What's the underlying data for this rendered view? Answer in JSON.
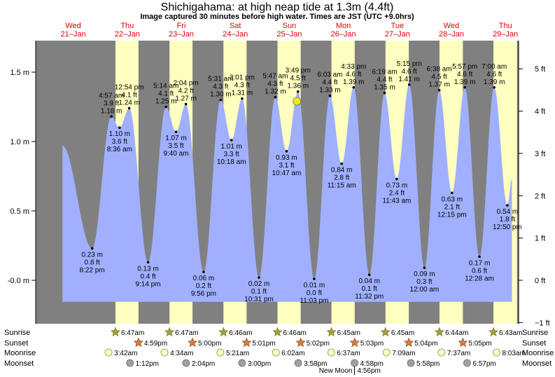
{
  "header": {
    "title": "Shichigahama: at high  neap tide at 1.3m (4.4ft)",
    "subtitle": "Image captured 30 minutes before high water. Times are JST (UTC +9.0hrs)"
  },
  "days": [
    {
      "name": "Wed",
      "date": "21–Jan"
    },
    {
      "name": "Thu",
      "date": "22–Jan"
    },
    {
      "name": "Fri",
      "date": "23–Jan"
    },
    {
      "name": "Sat",
      "date": "24–Jan"
    },
    {
      "name": "Sun",
      "date": "25–Jan"
    },
    {
      "name": "Mon",
      "date": "26–Jan"
    },
    {
      "name": "Tue",
      "date": "27–Jan"
    },
    {
      "name": "Wed",
      "date": "28–Jan"
    },
    {
      "name": "Thu",
      "date": "29–Jan"
    }
  ],
  "colors": {
    "night": "#808080",
    "day": "#ffffc0",
    "water": "#a0b0ff",
    "day_label": "#e00000",
    "sun_marker": "#a0a040",
    "sunset_marker": "#d08040",
    "moonrise_marker": "#ffffc0",
    "moonset_marker": "#a0a0a0"
  },
  "chart_data": {
    "type": "area",
    "title": "Shichigahama: at high  neap tide at 1.3m (4.4ft)",
    "y_left_unit": "m",
    "y_right_unit": "ft",
    "ylim_m": [
      -0.32,
      1.76
    ],
    "y_left_ticks": [
      "-0.0 m",
      "0.5 m",
      "1.0 m",
      "1.5 m"
    ],
    "y_left_values": [
      0,
      0.5,
      1.0,
      1.5
    ],
    "y_right_ticks": [
      "−1 ft",
      "0 ft",
      "1 ft",
      "2 ft",
      "3 ft",
      "4 ft",
      "5 ft"
    ],
    "y_right_values": [
      -1,
      0,
      1,
      2,
      3,
      4,
      5
    ],
    "tides": [
      {
        "t": 0.85,
        "type": "low",
        "m": 0.23,
        "m_label": "0.23 m",
        "ft": "0.8 ft",
        "time": "8:22 pm"
      },
      {
        "t": 1.206,
        "type": "high",
        "m": 1.18,
        "m_label": "1.18 m",
        "ft": "3.9 ft",
        "time": "4:57 am"
      },
      {
        "t": 1.358,
        "type": "low",
        "m": 1.1,
        "m_label": "1.10 m",
        "ft": "3.6 ft",
        "time": "8:36 am"
      },
      {
        "t": 1.537,
        "type": "high",
        "m": 1.24,
        "m_label": "1.24 m",
        "ft": "4.1 ft",
        "time": "12:54 pm"
      },
      {
        "t": 1.885,
        "type": "low",
        "m": 0.13,
        "m_label": "0.13 m",
        "ft": "0.4 ft",
        "time": "9:14 pm"
      },
      {
        "t": 2.218,
        "type": "high",
        "m": 1.25,
        "m_label": "1.25 m",
        "ft": "4.1 ft",
        "time": "5:14 am"
      },
      {
        "t": 2.403,
        "type": "low",
        "m": 1.07,
        "m_label": "1.07 m",
        "ft": "3.5 ft",
        "time": "9:40 am"
      },
      {
        "t": 2.586,
        "type": "high",
        "m": 1.27,
        "m_label": "1.27 m",
        "ft": "4.2 ft",
        "time": "2:04 pm"
      },
      {
        "t": 2.914,
        "type": "low",
        "m": 0.06,
        "m_label": "0.06 m",
        "ft": "0.2 ft",
        "time": "9:56 pm"
      },
      {
        "t": 3.23,
        "type": "high",
        "m": 1.3,
        "m_label": "1.30 m",
        "ft": "4.3 ft",
        "time": "5:31 am"
      },
      {
        "t": 3.429,
        "type": "low",
        "m": 1.01,
        "m_label": "1.01 m",
        "ft": "3.3 ft",
        "time": "10:18 am"
      },
      {
        "t": 3.626,
        "type": "high",
        "m": 1.31,
        "m_label": "1.31 m",
        "ft": "4.3 ft",
        "time": "3:01 pm"
      },
      {
        "t": 3.938,
        "type": "low",
        "m": 0.02,
        "m_label": "0.02 m",
        "ft": "0.1 ft",
        "time": "10:31 pm"
      },
      {
        "t": 4.241,
        "type": "high",
        "m": 1.32,
        "m_label": "1.32 m",
        "ft": "4.3 ft",
        "time": "5:47 am"
      },
      {
        "t": 4.449,
        "type": "low",
        "m": 0.93,
        "m_label": "0.93 m",
        "ft": "3.1 ft",
        "time": "10:47 am"
      },
      {
        "t": 4.66,
        "type": "high",
        "m": 1.36,
        "m_label": "1.36 m",
        "ft": "4.5 ft",
        "time": "3:49 pm"
      },
      {
        "t": 4.96,
        "type": "low",
        "m": 0.01,
        "m_label": "0.01 m",
        "ft": "0.0 ft",
        "time": "11:03 pm"
      },
      {
        "t": 5.252,
        "type": "high",
        "m": 1.33,
        "m_label": "1.33 m",
        "ft": "4.4 ft",
        "time": "6:03 am"
      },
      {
        "t": 5.469,
        "type": "low",
        "m": 0.84,
        "m_label": "0.84 m",
        "ft": "2.8 ft",
        "time": "11:15 am"
      },
      {
        "t": 5.69,
        "type": "high",
        "m": 1.39,
        "m_label": "1.39 m",
        "ft": "4.6 ft",
        "time": "4:33 pm"
      },
      {
        "t": 5.981,
        "type": "low",
        "m": 0.04,
        "m_label": "0.04 m",
        "ft": "0.1 ft",
        "time": "11:32 pm"
      },
      {
        "t": 6.263,
        "type": "high",
        "m": 1.35,
        "m_label": "1.35 m",
        "ft": "4.4 ft",
        "time": "6:19 am"
      },
      {
        "t": 6.488,
        "type": "low",
        "m": 0.73,
        "m_label": "0.73 m",
        "ft": "2.4 ft",
        "time": "11:43 am"
      },
      {
        "t": 6.719,
        "type": "high",
        "m": 1.41,
        "m_label": "1.41 m",
        "ft": "4.6 ft",
        "time": "5:15 pm"
      },
      {
        "t": 7.0,
        "type": "low",
        "m": 0.09,
        "m_label": "0.09 m",
        "ft": "0.3 ft",
        "time": "12:00 am"
      },
      {
        "t": 7.275,
        "type": "high",
        "m": 1.37,
        "m_label": "1.37 m",
        "ft": "4.5 ft",
        "time": "6:38 am"
      },
      {
        "t": 7.51,
        "type": "low",
        "m": 0.63,
        "m_label": "0.63 m",
        "ft": "2.1 ft",
        "time": "12:15 pm"
      },
      {
        "t": 7.748,
        "type": "high",
        "m": 1.39,
        "m_label": "1.39 m",
        "ft": "4.6 ft",
        "time": "5:57 pm"
      },
      {
        "t": 8.019,
        "type": "low",
        "m": 0.17,
        "m_label": "0.17 m",
        "ft": "0.6 ft",
        "time": "12:28 am"
      },
      {
        "t": 8.292,
        "type": "high",
        "m": 1.39,
        "m_label": "1.39 m",
        "ft": "4.6 ft",
        "time": "7:00 am"
      },
      {
        "t": 8.535,
        "type": "low",
        "m": 0.54,
        "m_label": "0.54 m",
        "ft": "1.8 ft",
        "time": "12:50 pm"
      }
    ],
    "current": {
      "t": 4.64,
      "m": 1.29
    }
  },
  "daylight": [
    {
      "rise": 1.282,
      "set": 1.708
    },
    {
      "rise": 2.282,
      "set": 2.708
    },
    {
      "rise": 3.281,
      "set": 3.709
    },
    {
      "rise": 4.281,
      "set": 4.71
    },
    {
      "rise": 5.28,
      "set": 5.71
    },
    {
      "rise": 6.28,
      "set": 6.711
    },
    {
      "rise": 7.279,
      "set": 7.712
    },
    {
      "rise": 8.278,
      "set": 8.714
    }
  ],
  "rows": {
    "sunrise": {
      "label": "Sunrise",
      "items": [
        {
          "t": 1.282,
          "text": "6:47am"
        },
        {
          "t": 2.282,
          "text": "6:47am"
        },
        {
          "t": 3.281,
          "text": "6:46am"
        },
        {
          "t": 4.281,
          "text": "6:46am"
        },
        {
          "t": 5.28,
          "text": "6:45am"
        },
        {
          "t": 6.28,
          "text": "6:45am"
        },
        {
          "t": 7.279,
          "text": "6:44am"
        },
        {
          "t": 8.278,
          "text": "6:43am"
        }
      ]
    },
    "sunset": {
      "label": "Sunset",
      "items": [
        {
          "t": 1.708,
          "text": "4:59pm"
        },
        {
          "t": 2.708,
          "text": "5:00pm"
        },
        {
          "t": 3.709,
          "text": "5:01pm"
        },
        {
          "t": 4.71,
          "text": "5:02pm"
        },
        {
          "t": 5.71,
          "text": "5:03pm"
        },
        {
          "t": 6.711,
          "text": "5:04pm"
        },
        {
          "t": 7.712,
          "text": "5:05pm"
        }
      ]
    },
    "moonrise": {
      "label": "Moonrise",
      "items": [
        {
          "t": 1.154,
          "text": "3:42am"
        },
        {
          "t": 2.19,
          "text": "4:34am"
        },
        {
          "t": 3.223,
          "text": "5:21am"
        },
        {
          "t": 4.251,
          "text": "6:02am"
        },
        {
          "t": 5.276,
          "text": "6:37am"
        },
        {
          "t": 6.298,
          "text": "7:09am"
        },
        {
          "t": 7.317,
          "text": "7:37am"
        },
        {
          "t": 8.335,
          "text": "8:03am"
        }
      ]
    },
    "moonset": {
      "label": "Moonset",
      "items": [
        {
          "t": 1.55,
          "text": "1:12pm"
        },
        {
          "t": 2.589,
          "text": "2:04pm"
        },
        {
          "t": 3.625,
          "text": "3:00pm"
        },
        {
          "t": 4.665,
          "text": "3:58pm"
        },
        {
          "t": 5.707,
          "text": "4:58pm"
        },
        {
          "t": 6.749,
          "text": "5:58pm"
        },
        {
          "t": 7.79,
          "text": "6:57pm"
        }
      ]
    }
  },
  "footer": {
    "new_moon": "New Moon",
    "new_moon_time": "4:56pm",
    "new_moon_t": 5.706
  }
}
